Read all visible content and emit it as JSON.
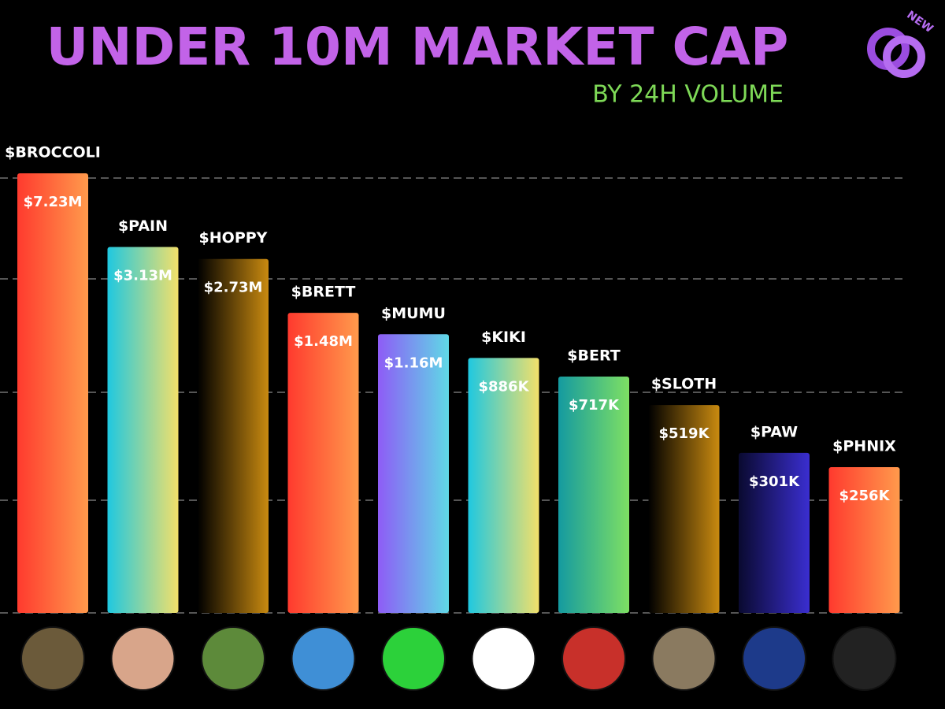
{
  "chart_data": {
    "type": "bar",
    "title": "UNDER 10M MARKET CAP",
    "subtitle": "BY 24H VOLUME",
    "badge": "NEW",
    "log_scale": true,
    "categories": [
      "$BROCCOLI",
      "$PAIN",
      "$HOPPY",
      "$BRETT",
      "$MUMU",
      "$KIKI",
      "$BERT",
      "$SLOTH",
      "$PAW",
      "$PHNIX"
    ],
    "values": [
      7230000,
      3130000,
      2730000,
      1480000,
      1160000,
      886000,
      717000,
      519000,
      301000,
      256000
    ],
    "value_labels": [
      "$7.23M",
      "$3.13M",
      "$2.73M",
      "$1.48M",
      "$1.16M",
      "$886K",
      "$717K",
      "$519K",
      "$301K",
      "$256K"
    ],
    "colors": [
      [
        "#ff3a2e",
        "#ff9a4c"
      ],
      [
        "#1fc8e0",
        "#f3e06a"
      ],
      [
        "#000000",
        "#c98a10"
      ],
      [
        "#ff3a2e",
        "#ff9a4c"
      ],
      [
        "#8e5cf6",
        "#5fd9e6"
      ],
      [
        "#1fc8e0",
        "#f3e06a"
      ],
      [
        "#149aa0",
        "#7ee063"
      ],
      [
        "#000000",
        "#c98a10"
      ],
      [
        "#0a0a30",
        "#3a2ed0"
      ],
      [
        "#ff3a2e",
        "#ff9a4c"
      ]
    ]
  }
}
